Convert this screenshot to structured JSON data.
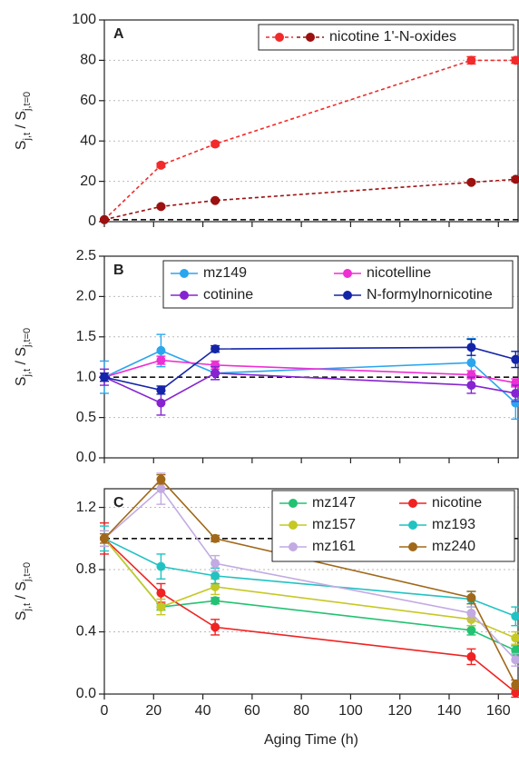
{
  "chart_data": [
    {
      "type": "line",
      "panel_label": "A",
      "line_style": "dashed",
      "ylabel": [
        "S",
        "j,t",
        " / S",
        "j,t=0"
      ],
      "x": [
        0,
        23,
        45,
        149,
        167
      ],
      "xlim": [
        0,
        168
      ],
      "ylim": [
        0,
        100
      ],
      "yticks": [
        0,
        20,
        40,
        60,
        80,
        100
      ],
      "grid": true,
      "reference_line": 1,
      "legend_columns": 1,
      "series": [
        {
          "name": "nicotine 1'-N-oxides",
          "color": "#f22a2a",
          "values": [
            1,
            28,
            38.5,
            80,
            80
          ],
          "errors": [
            0.5,
            1,
            1,
            1.8,
            1.5
          ]
        },
        {
          "color": "#9c1010",
          "values": [
            1,
            7.5,
            10.5,
            19.5,
            21
          ],
          "errors": [
            0.3,
            0.5,
            0.5,
            0.6,
            1
          ]
        }
      ]
    },
    {
      "type": "line",
      "panel_label": "B",
      "line_style": "solid",
      "ylabel": [
        "S",
        "j,t",
        " / S",
        "j,t=0"
      ],
      "x": [
        0,
        23,
        45,
        149,
        167
      ],
      "xlim": [
        0,
        168
      ],
      "ylim": [
        0,
        2.5
      ],
      "yticks": [
        {
          "value": 0,
          "label": "0.0"
        },
        0.5,
        {
          "value": 1,
          "label": "1.0"
        },
        1.5,
        {
          "value": 2,
          "label": "2.0"
        },
        2.5
      ],
      "grid": true,
      "reference_line": 1,
      "legend_columns": 2,
      "series": [
        {
          "name": "mz149",
          "color": "#2ba6ee",
          "values": [
            1.0,
            1.33,
            1.05,
            1.18,
            0.68
          ],
          "errors": [
            0.2,
            0.2,
            0.08,
            0.3,
            0.2
          ]
        },
        {
          "name": "nicotelline",
          "color": "#ee2fd4",
          "values": [
            1.0,
            1.21,
            1.15,
            1.03,
            0.93
          ],
          "errors": [
            0.05,
            0.05,
            0.05,
            0.05,
            0.05
          ]
        },
        {
          "name": "cotinine",
          "color": "#8524d0",
          "values": [
            1.0,
            0.68,
            1.05,
            0.9,
            0.8
          ],
          "errors": [
            0.1,
            0.15,
            0.08,
            0.1,
            0.1
          ]
        },
        {
          "name": "N-formylnornicotine",
          "color": "#1424a8",
          "values": [
            1.0,
            0.84,
            1.35,
            1.37,
            1.22
          ],
          "errors": [
            0.05,
            0.05,
            0.04,
            0.1,
            0.1
          ]
        }
      ]
    },
    {
      "type": "line",
      "panel_label": "C",
      "line_style": "solid",
      "ylabel": [
        "S",
        "j,t",
        " / S",
        "j,t=0"
      ],
      "xlabel": "Aging Time (h)",
      "x": [
        0,
        23,
        45,
        149,
        167
      ],
      "xlim": [
        0,
        168
      ],
      "xticks": [
        0,
        20,
        40,
        60,
        80,
        100,
        120,
        140,
        160
      ],
      "ylim": [
        0,
        1.32
      ],
      "yticks": [
        {
          "value": 0,
          "label": "0.0"
        },
        0.4,
        0.8,
        1.2
      ],
      "grid": true,
      "reference_line": 1,
      "legend_columns": 2,
      "series": [
        {
          "name": "mz147",
          "color": "#22c272",
          "values": [
            1.0,
            0.56,
            0.6,
            0.41,
            0.28
          ],
          "errors": [
            0.05,
            0.02,
            0.02,
            0.03,
            0.03
          ]
        },
        {
          "name": "nicotine",
          "color": "#f02222",
          "values": [
            1.0,
            0.65,
            0.43,
            0.24,
            0.01
          ],
          "errors": [
            0.1,
            0.06,
            0.05,
            0.05,
            0.03
          ]
        },
        {
          "name": "mz157",
          "color": "#c6c824",
          "values": [
            1.0,
            0.56,
            0.69,
            0.48,
            0.36
          ],
          "errors": [
            0.05,
            0.05,
            0.05,
            0.04,
            0.04
          ]
        },
        {
          "name": "mz193",
          "color": "#22c2c2",
          "values": [
            1.0,
            0.82,
            0.76,
            0.61,
            0.5
          ],
          "errors": [
            0.08,
            0.08,
            0.05,
            0.05,
            0.06
          ]
        },
        {
          "name": "mz161",
          "color": "#c2aae2",
          "values": [
            1.0,
            1.32,
            0.84,
            0.52,
            0.22
          ],
          "errors": [
            0.05,
            0.1,
            0.05,
            0.04,
            0.04
          ]
        },
        {
          "name": "mz240",
          "color": "#a06818",
          "values": [
            1.0,
            1.38,
            1.0,
            0.62,
            0.06
          ],
          "errors": [
            0.03,
            0.03,
            0.02,
            0.04,
            0.03
          ]
        }
      ]
    }
  ]
}
